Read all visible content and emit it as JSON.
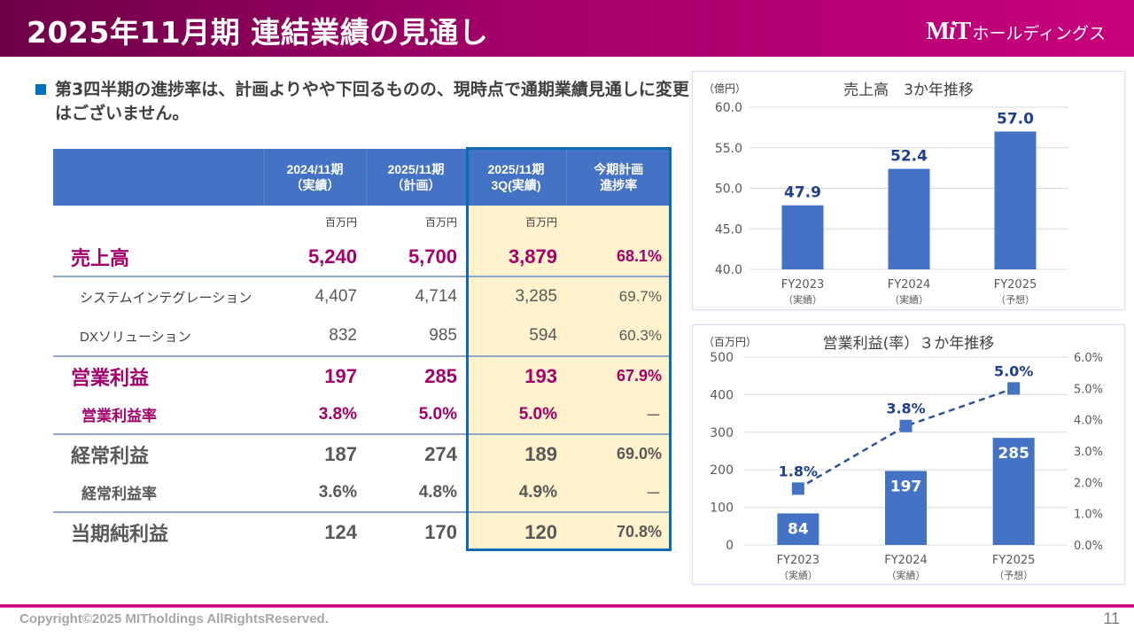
{
  "header": {
    "title": "2025年11月期 連結業績の見通し",
    "logo_mark_m": "M",
    "logo_mark_i": "i",
    "logo_mark_t": "T",
    "logo_text": "ホールディングス"
  },
  "bullet": {
    "text": "第3四半期の進捗率は、計画よりやや下回るものの、現時点で通期業績見通しに変更はございません。"
  },
  "table": {
    "headers": [
      "",
      "2024/11期\n（実績）",
      "2025/11期\n（計画）",
      "2025/11期\n3Q(実績)",
      "今期計画\n進捗率"
    ],
    "header_lines": [
      [
        "",
        ""
      ],
      [
        "2024/11期",
        "（実績）"
      ],
      [
        "2025/11期",
        "（計画）"
      ],
      [
        "2025/11期",
        "3Q(実績)"
      ],
      [
        "今期計画",
        "進捗率"
      ]
    ],
    "unit": "百万円",
    "rows": [
      {
        "label": "売上高",
        "fy2024": "5,240",
        "fy2025_plan": "5,700",
        "q3_actual": "3,879",
        "progress": "68.1%"
      },
      {
        "label": "システムインテグレーション",
        "fy2024": "4,407",
        "fy2025_plan": "4,714",
        "q3_actual": "3,285",
        "progress": "69.7%"
      },
      {
        "label": "DXソリューション",
        "fy2024": "832",
        "fy2025_plan": "985",
        "q3_actual": "594",
        "progress": "60.3%"
      },
      {
        "label": "営業利益",
        "fy2024": "197",
        "fy2025_plan": "285",
        "q3_actual": "193",
        "progress": "67.9%"
      },
      {
        "label": "営業利益率",
        "fy2024": "3.8%",
        "fy2025_plan": "5.0%",
        "q3_actual": "5.0%",
        "progress": "－"
      },
      {
        "label": "経常利益",
        "fy2024": "187",
        "fy2025_plan": "274",
        "q3_actual": "189",
        "progress": "69.0%"
      },
      {
        "label": "経常利益率",
        "fy2024": "3.6%",
        "fy2025_plan": "4.8%",
        "q3_actual": "4.9%",
        "progress": "－"
      },
      {
        "label": "当期純利益",
        "fy2024": "124",
        "fy2025_plan": "170",
        "q3_actual": "120",
        "progress": "70.8%"
      }
    ]
  },
  "colors": {
    "brand_pink": "#a3006a",
    "header_blue": "#4472c4",
    "highlight_fill": "#fff2cc",
    "highlight_border": "#0c6ab4",
    "bar_blue": "#4472c4",
    "label_navy": "#1f3f8f"
  },
  "chart_data": [
    {
      "type": "bar",
      "title": "売上高　3か年推移",
      "unit_label": "（億円）",
      "categories": [
        "FY2023",
        "FY2024",
        "FY2025"
      ],
      "category_sublabels": [
        "（実績）",
        "（実績）",
        "（予想）"
      ],
      "values": [
        47.9,
        52.4,
        57.0
      ],
      "data_labels": [
        "47.9",
        "52.4",
        "57.0"
      ],
      "ylim": [
        40.0,
        60.0
      ],
      "yticks": [
        "40.0",
        "45.0",
        "50.0",
        "55.0",
        "60.0"
      ],
      "ytick_values": [
        40,
        45,
        50,
        55,
        60
      ],
      "grid": true,
      "xlabel": "",
      "ylabel": "（億円）"
    },
    {
      "type": "bar+line",
      "title": "営業利益(率）３か年推移",
      "unit_label": "（百万円）",
      "categories": [
        "FY2023",
        "FY2024",
        "FY2025"
      ],
      "category_sublabels": [
        "（実績）",
        "（実績）",
        "（予想）"
      ],
      "series": [
        {
          "name": "営業利益",
          "type": "bar",
          "axis": "left",
          "values": [
            84,
            197,
            285
          ],
          "data_labels": [
            "84",
            "197",
            "285"
          ]
        },
        {
          "name": "営業利益率",
          "type": "line",
          "axis": "right",
          "style": "dashed",
          "marker": "square",
          "values": [
            1.8,
            3.8,
            5.0
          ],
          "data_labels": [
            "1.8%",
            "3.8%",
            "5.0%"
          ]
        }
      ],
      "ylim": [
        0,
        500
      ],
      "yticks": [
        "0",
        "100",
        "200",
        "300",
        "400",
        "500"
      ],
      "ytick_values": [
        0,
        100,
        200,
        300,
        400,
        500
      ],
      "y2lim": [
        0,
        6
      ],
      "y2ticks": [
        "0.0%",
        "1.0%",
        "2.0%",
        "3.0%",
        "4.0%",
        "5.0%",
        "6.0%"
      ],
      "y2tick_values": [
        0,
        1,
        2,
        3,
        4,
        5,
        6
      ],
      "grid": true
    }
  ],
  "footer": {
    "copyright": "Copyright©2025 MITholdings AllRightsReserved.",
    "page": "11"
  }
}
